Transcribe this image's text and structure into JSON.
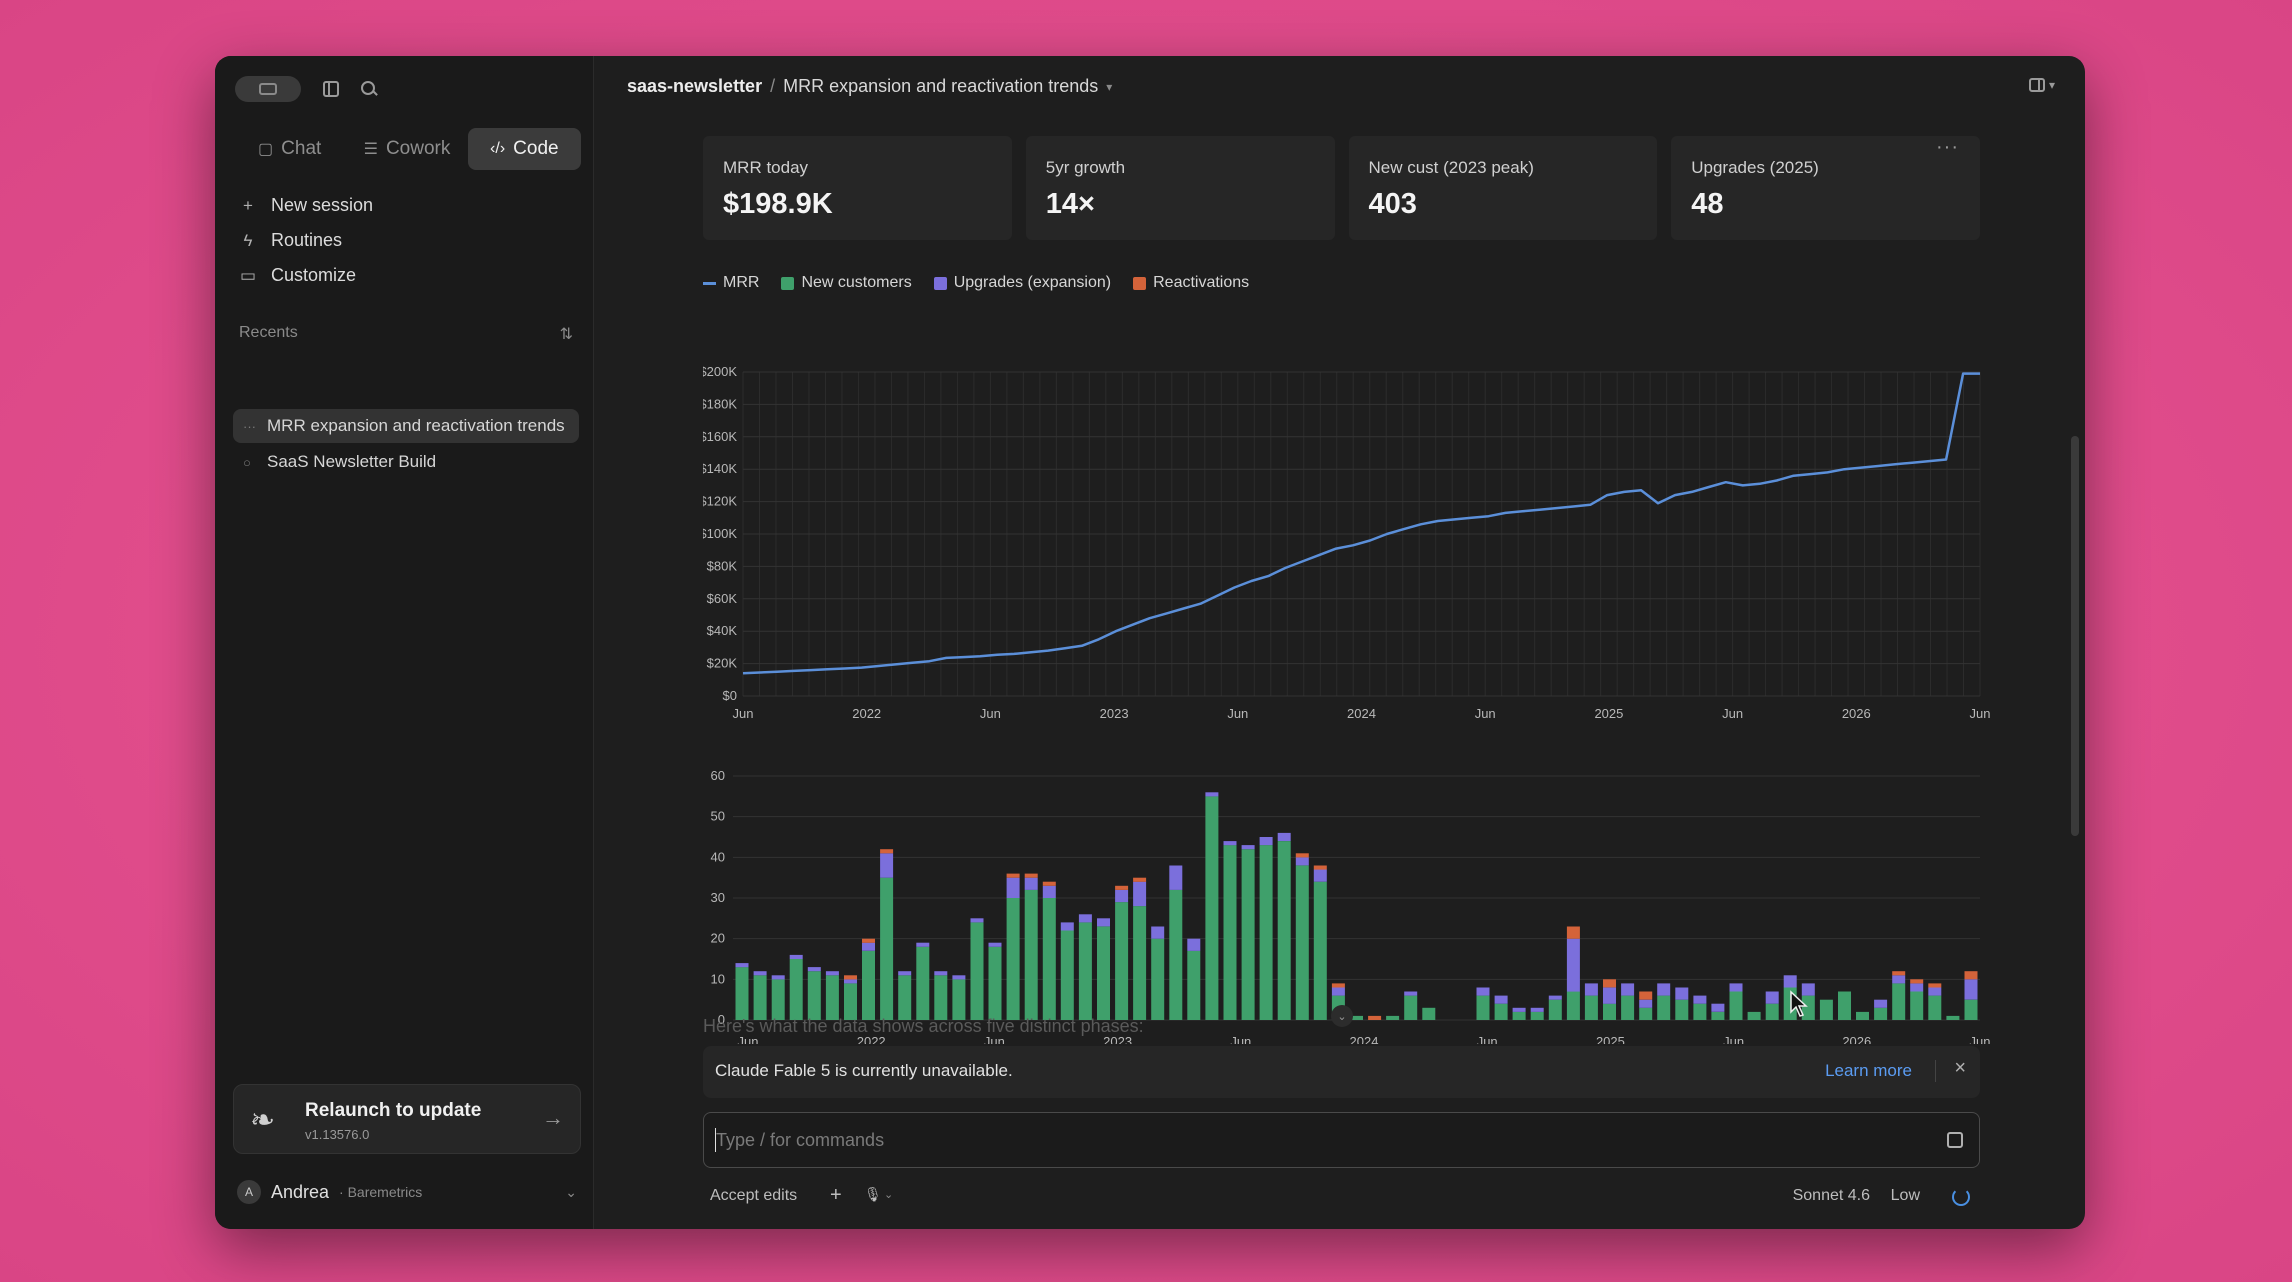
{
  "sidebar": {
    "modes": [
      {
        "label": "Chat",
        "icon": "chat-bubble-icon"
      },
      {
        "label": "Cowork",
        "icon": "cowork-icon"
      },
      {
        "label": "Code",
        "icon": "code-icon"
      }
    ],
    "nav": [
      {
        "label": "New session",
        "icon": "plus-icon"
      },
      {
        "label": "Routines",
        "icon": "bolt-icon"
      },
      {
        "label": "Customize",
        "icon": "briefcase-icon"
      }
    ],
    "recents_label": "Recents",
    "recents": [
      {
        "label": "MRR expansion and reactivation trends"
      },
      {
        "label": "SaaS Newsletter Build"
      }
    ],
    "update": {
      "title": "Relaunch to update",
      "version": "v1.13576.0"
    },
    "user": {
      "initial": "A",
      "name": "Andrea",
      "org": "· Baremetrics"
    }
  },
  "header": {
    "project": "saas-newsletter",
    "separator": "/",
    "title": "MRR expansion and reactivation trends"
  },
  "kpis": [
    {
      "label": "MRR today",
      "value": "$198.9K"
    },
    {
      "label": "5yr growth",
      "value": "14×"
    },
    {
      "label": "New cust (2023 peak)",
      "value": "403"
    },
    {
      "label": "Upgrades (2025)",
      "value": "48"
    }
  ],
  "colors": {
    "mrr": "#5b8fd9",
    "new_customers": "#3fa06b",
    "upgrades": "#7b6fdc",
    "reactivations": "#d4633a"
  },
  "chart_data": [
    {
      "type": "line",
      "series": [
        {
          "name": "MRR",
          "values": [
            14000,
            14500,
            15000,
            15500,
            16000,
            16500,
            17000,
            17500,
            18500,
            19500,
            20500,
            21500,
            23500,
            24000,
            24500,
            25500,
            26000,
            27000,
            28000,
            29500,
            31000,
            35000,
            40000,
            44000,
            48000,
            51000,
            54000,
            57000,
            62000,
            67000,
            71000,
            74000,
            79000,
            83000,
            87000,
            91000,
            93000,
            96000,
            100000,
            103000,
            106000,
            108000,
            109000,
            110000,
            111000,
            113000,
            114000,
            115000,
            116000,
            117000,
            118000,
            124000,
            126000,
            127000,
            119000,
            124000,
            126000,
            129000,
            132000,
            130000,
            131000,
            133000,
            136000,
            137000,
            138000,
            140000,
            141000,
            142000,
            143000,
            144000,
            145000,
            146000,
            199000,
            199000
          ]
        },
        {
          "name": "New customers",
          "values": []
        },
        {
          "name": "Upgrades (expansion)",
          "values": []
        },
        {
          "name": "Reactivations",
          "values": []
        }
      ],
      "x_ticks": [
        "Jun",
        "2022",
        "Jun",
        "2023",
        "Jun",
        "2024",
        "Jun",
        "2025",
        "Jun",
        "2026",
        "Jun"
      ],
      "y_ticks": [
        "$0",
        "$20K",
        "$40K",
        "$60K",
        "$80K",
        "$100K",
        "$120K",
        "$140K",
        "$160K",
        "$180K",
        "$200K"
      ],
      "ylim": [
        0,
        200000
      ],
      "grid": true,
      "legend": "top-left"
    },
    {
      "type": "bar",
      "stacked": true,
      "series": [
        {
          "name": "New customers",
          "values": [
            13,
            11,
            10,
            15,
            12,
            11,
            9,
            17,
            35,
            11,
            18,
            11,
            10,
            24,
            18,
            30,
            32,
            30,
            22,
            24,
            23,
            29,
            28,
            20,
            32,
            17,
            55,
            43,
            42,
            43,
            44,
            38,
            34,
            6,
            1,
            0,
            1,
            6,
            3,
            0,
            0,
            6,
            4,
            2,
            2,
            5,
            7,
            6,
            4,
            6,
            3,
            6,
            5,
            4,
            2,
            7,
            2,
            4,
            8,
            6,
            5,
            7,
            2,
            3,
            9,
            7,
            6,
            1,
            5
          ]
        },
        {
          "name": "Upgrades (expansion)",
          "values": [
            1,
            1,
            1,
            1,
            1,
            1,
            1,
            2,
            6,
            1,
            1,
            1,
            1,
            1,
            1,
            5,
            3,
            3,
            2,
            2,
            2,
            3,
            6,
            3,
            6,
            3,
            1,
            1,
            1,
            2,
            2,
            2,
            3,
            2,
            0,
            0,
            0,
            1,
            0,
            0,
            0,
            2,
            2,
            1,
            1,
            1,
            13,
            3,
            4,
            3,
            2,
            3,
            3,
            2,
            2,
            2,
            0,
            3,
            3,
            3,
            0,
            0,
            0,
            2,
            2,
            2,
            2,
            0,
            5
          ]
        },
        {
          "name": "Reactivations",
          "values": [
            0,
            0,
            0,
            0,
            0,
            0,
            1,
            1,
            1,
            0,
            0,
            0,
            0,
            0,
            0,
            1,
            1,
            1,
            0,
            0,
            0,
            1,
            1,
            0,
            0,
            0,
            0,
            0,
            0,
            0,
            0,
            1,
            1,
            1,
            0,
            1,
            0,
            0,
            0,
            0,
            0,
            0,
            0,
            0,
            0,
            0,
            3,
            0,
            2,
            0,
            2,
            0,
            0,
            0,
            0,
            0,
            0,
            0,
            0,
            0,
            0,
            0,
            0,
            0,
            1,
            1,
            1,
            0,
            2
          ]
        }
      ],
      "x_ticks": [
        "Jun",
        "2022",
        "Jun",
        "2023",
        "Jun",
        "2024",
        "Jun",
        "2025",
        "Jun",
        "2026",
        "Jun"
      ],
      "y_ticks": [
        "0",
        "10",
        "20",
        "30",
        "40",
        "50",
        "60"
      ],
      "ylim": [
        0,
        60
      ],
      "grid": true
    }
  ],
  "phase_text": "Here's what the data shows across five distinct phases:",
  "notice": {
    "message": "Claude Fable 5 is currently unavailable.",
    "link": "Learn more"
  },
  "composer": {
    "placeholder": "Type / for commands"
  },
  "toolbar": {
    "accept": "Accept edits",
    "model": "Sonnet 4.6",
    "effort": "Low"
  }
}
